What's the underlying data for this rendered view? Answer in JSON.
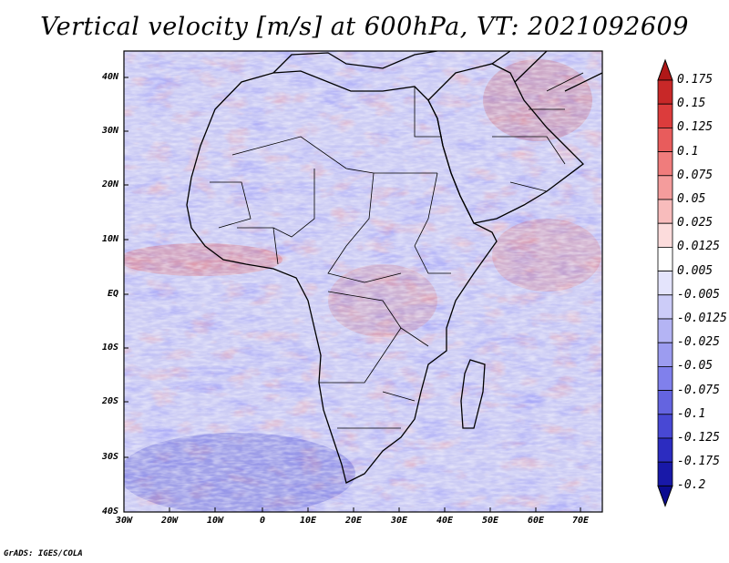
{
  "title": "Vertical velocity [m/s] at 600hPa, VT: 2021092609",
  "map": {
    "region": "Africa and Arabia",
    "variable": "Vertical velocity",
    "units": "m/s",
    "level": "600hPa",
    "valid_time": "2021092609",
    "lat_labels": [
      "40N",
      "30N",
      "20N",
      "10N",
      "EQ",
      "10S",
      "20S",
      "30S",
      "40S"
    ],
    "lon_labels": [
      "30W",
      "20W",
      "10W",
      "0",
      "10E",
      "20E",
      "30E",
      "40E",
      "50E",
      "60E",
      "70E"
    ]
  },
  "colorbar": {
    "labels": [
      "0.175",
      "0.15",
      "0.125",
      "0.1",
      "0.075",
      "0.05",
      "0.025",
      "0.0125",
      "0.005",
      "-0.005",
      "-0.0125",
      "-0.025",
      "-0.05",
      "-0.075",
      "-0.1",
      "-0.125",
      "-0.175",
      "-0.2"
    ],
    "colors": [
      "#b01818",
      "#c82828",
      "#dc3c3c",
      "#e85c5c",
      "#f07c7c",
      "#f49c9c",
      "#f8bcbc",
      "#fcdcdc",
      "#ffffff",
      "#e4e4fc",
      "#ccccf8",
      "#b4b4f4",
      "#9c9cf0",
      "#8080ec",
      "#6464e0",
      "#4848d4",
      "#2c2cc0",
      "#1818a8",
      "#0c0c90"
    ]
  },
  "credit": "GrADS: IGES/COLA"
}
